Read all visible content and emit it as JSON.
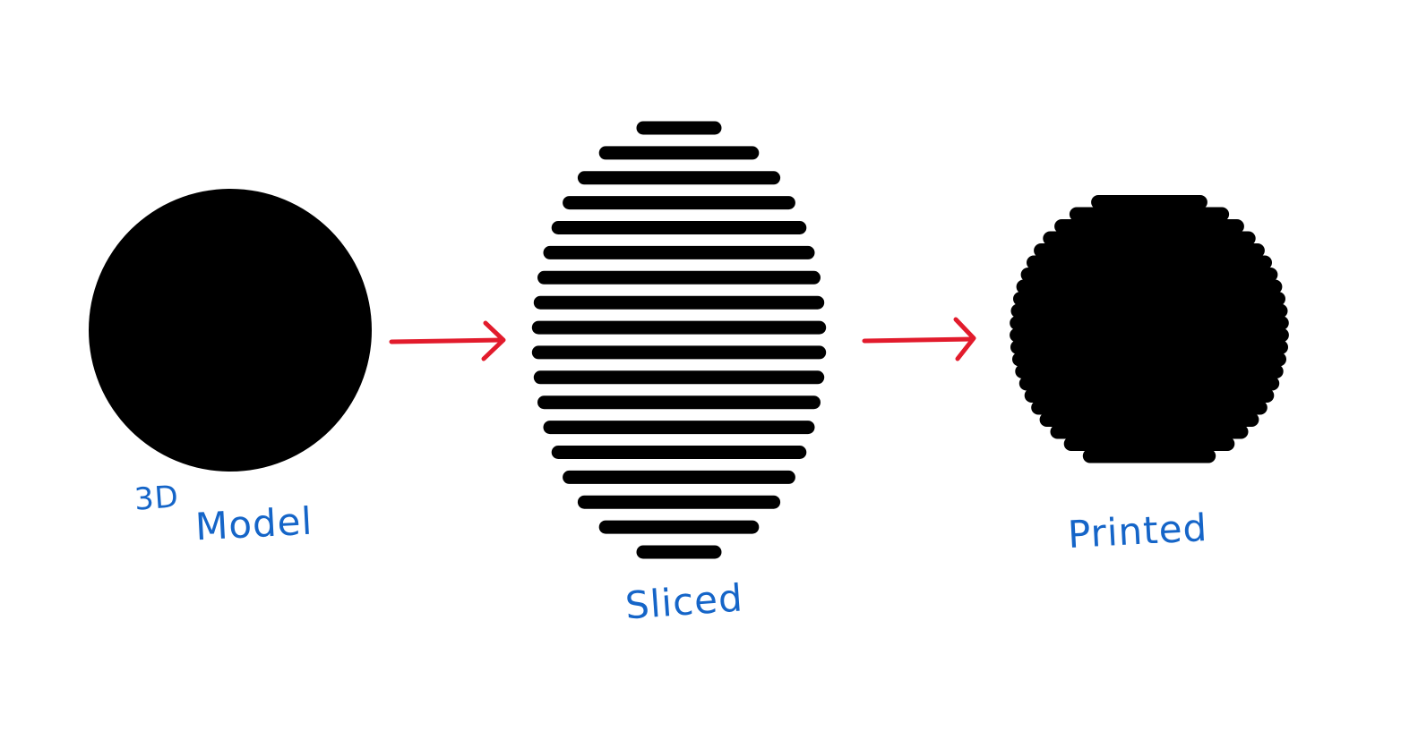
{
  "colors": {
    "shape": "#000000",
    "arrow": "#e21b2c",
    "label": "#1565c8",
    "background": "#ffffff"
  },
  "labels": {
    "model_prefix": "3D",
    "model": "Model",
    "sliced": "Sliced",
    "printed": "Printed"
  },
  "stages": [
    "3D Model",
    "Sliced",
    "Printed"
  ],
  "sliced_layers": 18,
  "printed_layers": 13
}
